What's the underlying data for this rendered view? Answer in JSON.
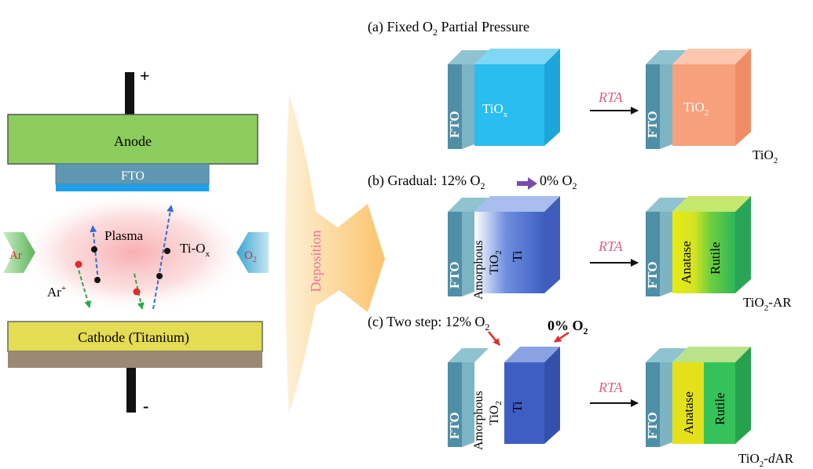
{
  "left_apparatus": {
    "plus_label": "+",
    "minus_label": "-",
    "anode_label": "Anode",
    "fto_label": "FTO",
    "plasma_label": "Plasma",
    "tiox_label": "Ti-O",
    "tiox_sub": "x",
    "ar_ion_label": "Ar",
    "ar_ion_sup": "+",
    "ar_label": "Ar",
    "o2_label": "O",
    "o2_sub": "2",
    "cathode_label": "Cathode (Titanium)",
    "deposition_label": "Deposition"
  },
  "panel_a": {
    "title_pre": "(a) Fixed O",
    "title_sub": "2",
    "title_post": " Partial Pressure",
    "fto_left": "FTO",
    "film_left": "TiO",
    "film_left_sub": "x",
    "rta": "RTA",
    "fto_right": "FTO",
    "film_right": "TiO",
    "film_right_sub": "2",
    "result": "TiO",
    "result_sub": "2"
  },
  "panel_b": {
    "title_pre": "(b) Gradual: 12% O",
    "title_sub": "2",
    "title_post": "0% O",
    "title_post_sub": "2",
    "fto_left": "FTO",
    "amorphous": "Amorphous",
    "tio2": "TiO",
    "tio2_sub": "2",
    "ti": "Ti",
    "rta": "RTA",
    "fto_right": "FTO",
    "anatase": "Anatase",
    "rutile": "Rutile",
    "result": "TiO",
    "result_sub": "2",
    "result_post": "-AR"
  },
  "panel_c": {
    "title_pre": "(c) Two step: 12% O",
    "title_sub": "2",
    "zero_label": "0% O",
    "zero_sub": "2",
    "fto_left": "FTO",
    "amorphous": "Amorphous",
    "tio2": "TiO",
    "tio2_sub": "2",
    "ti": "Ti",
    "rta": "RTA",
    "fto_right": "FTO",
    "anatase": "Anatase",
    "rutile": "Rutile",
    "result": "TiO",
    "result_sub": "2",
    "result_dash": "-",
    "result_d": "d",
    "result_post": "AR"
  },
  "colors": {
    "anode": "#8ccd5e",
    "fto": "#5f97b2",
    "cathode": "#e4dc52",
    "substrate": "#7aa9b8",
    "tiox": "#29bdf0",
    "tio2": "#f7a07c",
    "ti_blue": "#4a6cc4",
    "anatase": "#e4e11a",
    "rutile": "#35c25a",
    "rta_text": "#e0607f"
  }
}
